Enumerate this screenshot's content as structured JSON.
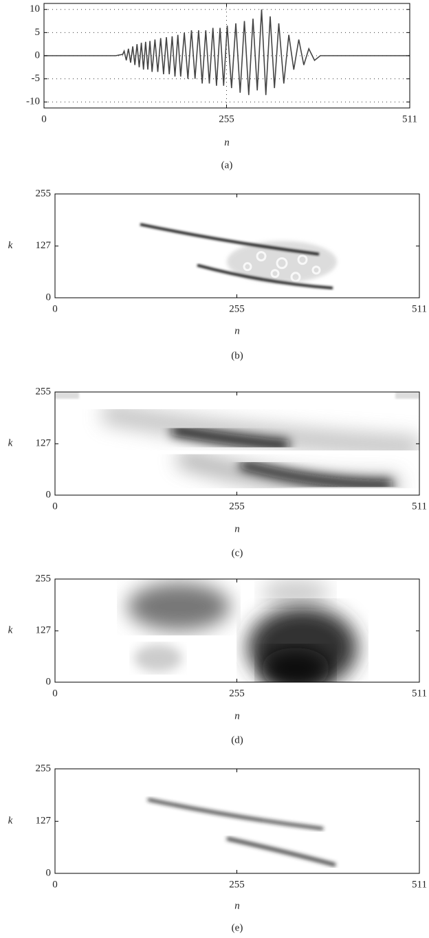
{
  "chart_data": [
    {
      "type": "line",
      "title": "(a)",
      "xlabel": "n",
      "xlim": [
        0,
        511
      ],
      "ylim": [
        -11.3,
        11.3
      ],
      "xticks": [
        0,
        255,
        511
      ],
      "yticks": [
        -10,
        -5,
        0,
        5,
        10
      ],
      "grid": true,
      "x": [
        0,
        50,
        100,
        110,
        112,
        115,
        118,
        121,
        124,
        127,
        130,
        133,
        136,
        139,
        142,
        145,
        148,
        151,
        155,
        159,
        163,
        167,
        171,
        175,
        179,
        183,
        187,
        191,
        196,
        201,
        206,
        211,
        216,
        221,
        226,
        231,
        236,
        241,
        246,
        251,
        256,
        262,
        268,
        274,
        280,
        286,
        292,
        298,
        304,
        310,
        316,
        322,
        328,
        335,
        342,
        349,
        356,
        363,
        370,
        378,
        386,
        400,
        511
      ],
      "series": [
        {
          "color": "#444444",
          "values": [
            0,
            0,
            0,
            0.3,
            1,
            -1,
            1.5,
            -1.5,
            2,
            -2,
            2.5,
            -2.5,
            2.8,
            -3,
            3,
            -3,
            3.2,
            -3.5,
            3.5,
            -3.5,
            3.8,
            -4,
            4,
            -4,
            4.2,
            -4.5,
            4.5,
            -4.5,
            5,
            -5,
            5.5,
            -5,
            5.5,
            -6,
            5.5,
            -6,
            6,
            -6.5,
            6,
            -6.5,
            6.5,
            -7,
            7,
            -8,
            7.5,
            -8.5,
            8,
            -7.5,
            10,
            -8.5,
            8.5,
            -7,
            7,
            -6,
            4.5,
            -3,
            3.5,
            -2,
            1.5,
            -1,
            0,
            0,
            0
          ]
        }
      ]
    },
    {
      "type": "heatmap",
      "title": "(b)",
      "xlabel": "n",
      "ylabel": "k",
      "xlim": [
        0,
        511
      ],
      "ylim": [
        0,
        255
      ],
      "xticks": [
        0,
        255,
        511
      ],
      "yticks": [
        0,
        127,
        255
      ]
    },
    {
      "type": "heatmap",
      "title": "(c)",
      "xlabel": "n",
      "ylabel": "k",
      "xlim": [
        0,
        511
      ],
      "ylim": [
        0,
        255
      ],
      "xticks": [
        0,
        255,
        511
      ],
      "yticks": [
        0,
        127,
        255
      ]
    },
    {
      "type": "heatmap",
      "title": "(d)",
      "xlabel": "n",
      "ylabel": "k",
      "xlim": [
        0,
        511
      ],
      "ylim": [
        0,
        255
      ],
      "xticks": [
        0,
        255,
        511
      ],
      "yticks": [
        0,
        127,
        255
      ]
    },
    {
      "type": "heatmap",
      "title": "(e)",
      "xlabel": "n",
      "ylabel": "k",
      "xlim": [
        0,
        511
      ],
      "ylim": [
        0,
        255
      ],
      "xticks": [
        0,
        255,
        511
      ],
      "yticks": [
        0,
        127,
        255
      ]
    }
  ]
}
